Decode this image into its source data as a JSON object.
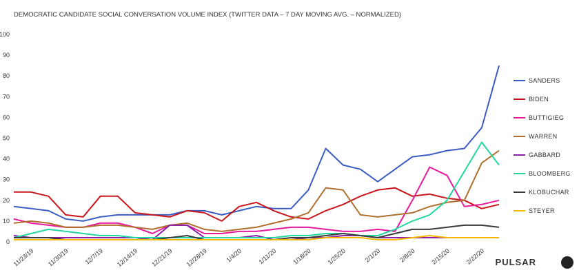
{
  "chart_data": {
    "type": "line",
    "title": "DEMOCRATIC CANDIDATE SOCIAL CONVERSATION VOLUME INDEX (TWITTER DATA – 7 DAY MOVING AVG. – NORMALIZED)",
    "brand": "PULSAR",
    "categories": [
      null,
      "11/23/19",
      null,
      "11/30/19",
      null,
      "12/7/19",
      null,
      "12/14/19",
      null,
      "12/21/19",
      null,
      "12/28/19",
      null,
      "1/4/20",
      null,
      "1/11/20",
      null,
      "1/18/20",
      null,
      "1/25/20",
      null,
      "2/1/20",
      null,
      "2/8/20",
      null,
      "2/15/20",
      null,
      "2/22/20",
      null
    ],
    "ylim": [
      0,
      100
    ],
    "yticks": [
      0,
      10,
      20,
      30,
      40,
      50,
      60,
      70,
      80,
      90,
      100
    ],
    "grid": false,
    "legend": "right",
    "series": [
      {
        "name": "SANDERS",
        "color": "#3b5cc4",
        "values": [
          17,
          16,
          15,
          11,
          10,
          12,
          13,
          13,
          13,
          13,
          15,
          15,
          13,
          15,
          17,
          16,
          16,
          25,
          45,
          37,
          35,
          29,
          35,
          41,
          42,
          44,
          45,
          55,
          85
        ]
      },
      {
        "name": "BIDEN",
        "color": "#c8151b",
        "values": [
          24,
          24,
          22,
          13,
          12,
          22,
          22,
          14,
          13,
          12,
          15,
          14,
          10,
          17,
          19,
          15,
          12,
          11,
          15,
          18,
          22,
          25,
          26,
          22,
          23,
          21,
          20,
          16,
          18
        ]
      },
      {
        "name": "BUTTIGIEG",
        "color": "#e8199c",
        "values": [
          11,
          9,
          8,
          7,
          7,
          9,
          9,
          7,
          4,
          8,
          8,
          4,
          4,
          5,
          5,
          6,
          7,
          7,
          6,
          5,
          5,
          6,
          5,
          20,
          36,
          32,
          17,
          18,
          20
        ]
      },
      {
        "name": "WARREN",
        "color": "#b06f2c",
        "values": [
          9,
          10,
          9,
          7,
          7,
          8,
          8,
          7,
          6,
          8,
          9,
          6,
          5,
          6,
          7,
          9,
          11,
          14,
          26,
          25,
          13,
          12,
          13,
          14,
          17,
          19,
          20,
          38,
          44
        ]
      },
      {
        "name": "GABBARD",
        "color": "#8a1fa8",
        "values": [
          3,
          2,
          2,
          2,
          2,
          2,
          2,
          2,
          1,
          8,
          8,
          2,
          2,
          2,
          3,
          1,
          1,
          2,
          2,
          3,
          3,
          2,
          2,
          2,
          2,
          2,
          2,
          2,
          2
        ]
      },
      {
        "name": "BLOOMBERG",
        "color": "#22d6a0",
        "values": [
          2,
          4,
          6,
          5,
          4,
          3,
          3,
          2,
          2,
          2,
          2,
          2,
          2,
          2,
          2,
          2,
          3,
          3,
          4,
          4,
          3,
          3,
          6,
          10,
          13,
          20,
          34,
          48,
          37
        ]
      },
      {
        "name": "KLOBUCHAR",
        "color": "#3a3a3a",
        "values": [
          2,
          2,
          2,
          1,
          1,
          1,
          1,
          1,
          1,
          2,
          3,
          1,
          1,
          1,
          1,
          1,
          2,
          2,
          3,
          4,
          3,
          2,
          4,
          6,
          6,
          7,
          8,
          8,
          7
        ]
      },
      {
        "name": "STEYER",
        "color": "#f5b800",
        "values": [
          1,
          1,
          1,
          1,
          1,
          1,
          1,
          1,
          1,
          1,
          1,
          1,
          1,
          1,
          1,
          1,
          1,
          1,
          2,
          2,
          2,
          1,
          1,
          2,
          3,
          2,
          2,
          2,
          2
        ]
      }
    ]
  }
}
